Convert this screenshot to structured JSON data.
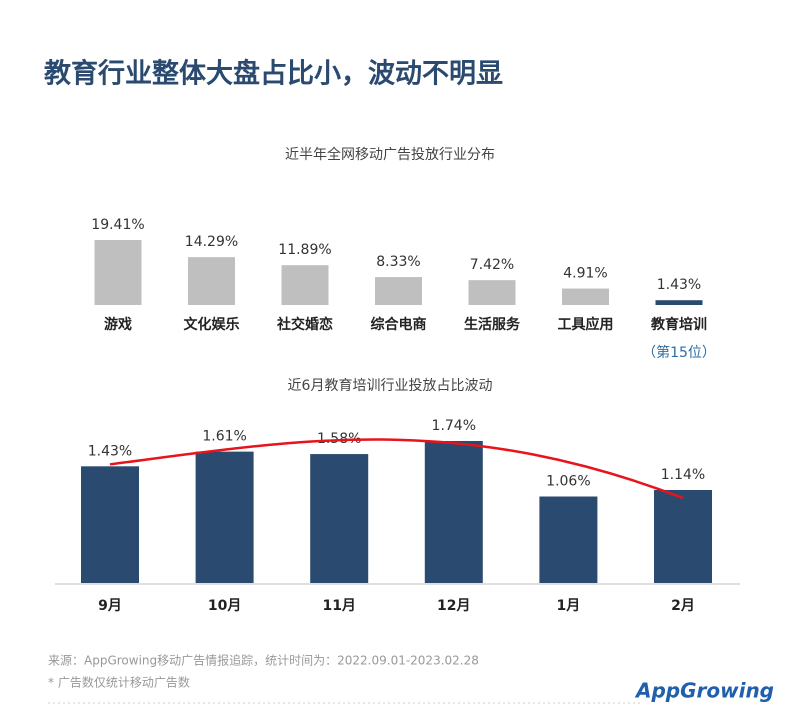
{
  "title": "教育行业整体大盘占比小，波动不明显",
  "chart_data": [
    {
      "type": "bar",
      "title": "近半年全网移动广告投放行业分布",
      "categories": [
        "游戏",
        "文化娱乐",
        "社交婚恋",
        "综合电商",
        "生活服务",
        "工具应用",
        "教育培训"
      ],
      "values": [
        19.41,
        14.29,
        11.89,
        8.33,
        7.42,
        4.91,
        1.43
      ],
      "value_labels": [
        "19.41%",
        "14.29%",
        "11.89%",
        "8.33%",
        "7.42%",
        "4.91%",
        "1.43%"
      ],
      "colors": [
        "#bfbfbf",
        "#bfbfbf",
        "#bfbfbf",
        "#bfbfbf",
        "#bfbfbf",
        "#bfbfbf",
        "#2b4a6f"
      ],
      "annotation": "（第15位）"
    },
    {
      "type": "bar",
      "title": "近6月教育培训行业投放占比波动",
      "categories": [
        "9月",
        "10月",
        "11月",
        "12月",
        "1月",
        "2月"
      ],
      "values": [
        1.43,
        1.61,
        1.58,
        1.74,
        1.06,
        1.14
      ],
      "value_labels": [
        "1.43%",
        "1.61%",
        "1.58%",
        "1.74%",
        "1.06%",
        "1.14%"
      ],
      "color": "#2b4a6f",
      "trend_color": "#e8131b"
    }
  ],
  "footer": {
    "source": "来源：AppGrowing移动广告情报追踪，统计时间为：2022.09.01-2023.02.28",
    "note": "* 广告数仅统计移动广告数"
  },
  "logo": "AppGrowing"
}
